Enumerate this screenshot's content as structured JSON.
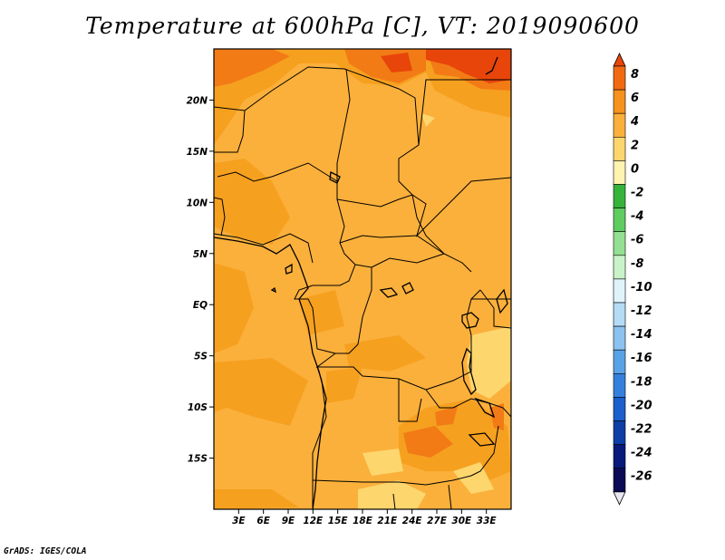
{
  "title": "Temperature at 600hPa [C], VT: 2019090600",
  "footer": "GrADS: IGES/COLA",
  "map": {
    "lon_range": [
      0,
      36
    ],
    "lat_range": [
      -20,
      25
    ],
    "lat_ticks": [
      {
        "value": 20,
        "label": "20N"
      },
      {
        "value": 15,
        "label": "15N"
      },
      {
        "value": 10,
        "label": "10N"
      },
      {
        "value": 5,
        "label": "5N"
      },
      {
        "value": 0,
        "label": "EQ"
      },
      {
        "value": -5,
        "label": "5S"
      },
      {
        "value": -10,
        "label": "10S"
      },
      {
        "value": -15,
        "label": "15S"
      }
    ],
    "lon_ticks": [
      {
        "value": 3,
        "label": "3E"
      },
      {
        "value": 6,
        "label": "6E"
      },
      {
        "value": 9,
        "label": "9E"
      },
      {
        "value": 12,
        "label": "12E"
      },
      {
        "value": 15,
        "label": "15E"
      },
      {
        "value": 18,
        "label": "18E"
      },
      {
        "value": 21,
        "label": "21E"
      },
      {
        "value": 24,
        "label": "24E"
      },
      {
        "value": 27,
        "label": "27E"
      },
      {
        "value": 30,
        "label": "30E"
      },
      {
        "value": 33,
        "label": "33E"
      }
    ]
  },
  "colorbar": {
    "labels": [
      "8",
      "6",
      "4",
      "2",
      "0",
      "-2",
      "-4",
      "-6",
      "-8",
      "-10",
      "-12",
      "-14",
      "-16",
      "-18",
      "-20",
      "-22",
      "-24",
      "-26"
    ],
    "colors": [
      "#e8450a",
      "#f16a12",
      "#f6921e",
      "#fbb03b",
      "#fdd66e",
      "#fff3b0",
      "#36b33a",
      "#5fcc5f",
      "#93e093",
      "#c8f3c8",
      "#dff3fb",
      "#b4dcf6",
      "#8cc2f0",
      "#5aa2e8",
      "#3680dd",
      "#1a5fcb",
      "#0d3ea6",
      "#081a7a",
      "#0a0a55",
      "#e8e8f5"
    ]
  }
}
